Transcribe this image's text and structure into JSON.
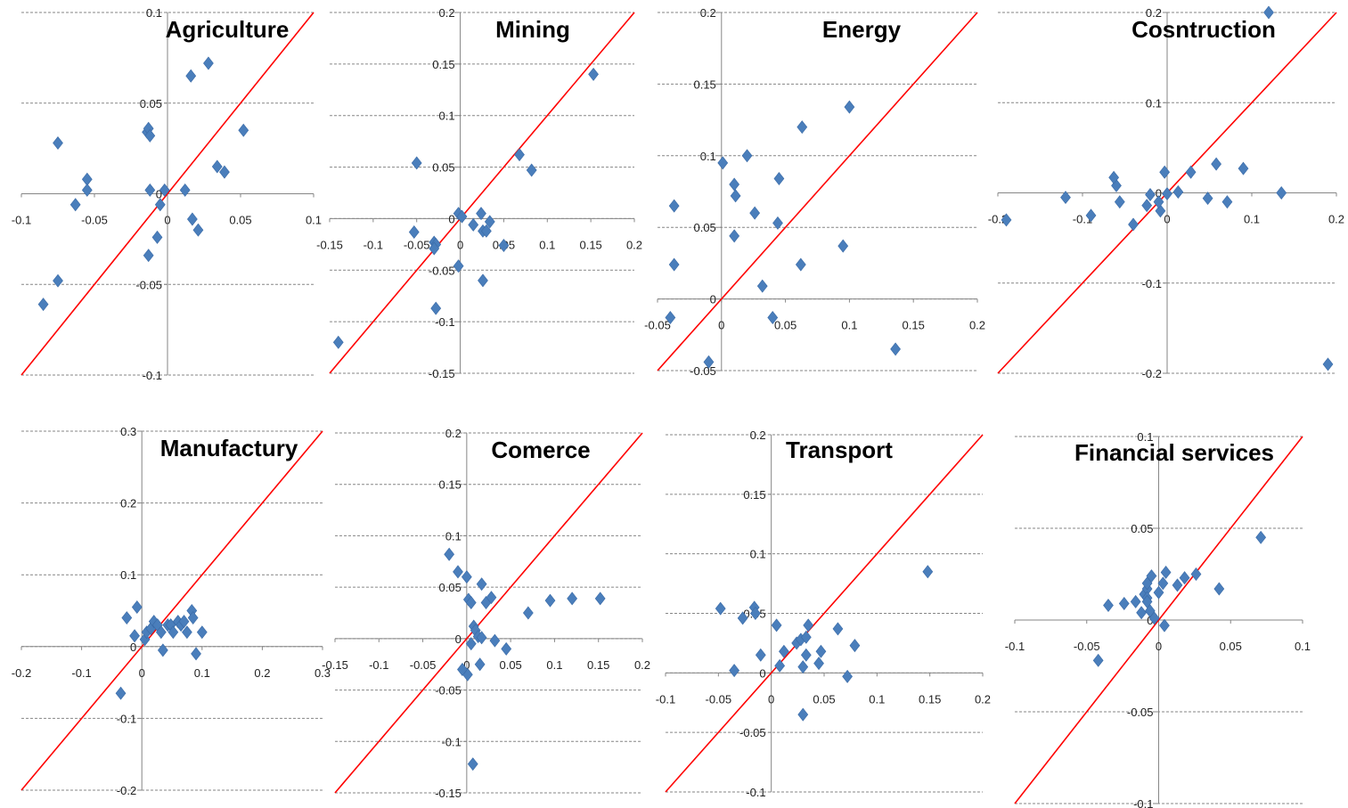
{
  "colors": {
    "points": "#4a7ebb",
    "diagonal": "#ff0000",
    "gridline": "#868686",
    "axis": "#868686"
  },
  "chart_data": [
    {
      "type": "scatter",
      "title": "Agriculture",
      "grid": "horizontal-dashed",
      "reference_line": "y=x",
      "xlim": [
        -0.1,
        0.1
      ],
      "ylim": [
        -0.1,
        0.1
      ],
      "xticks": [
        -0.1,
        -0.05,
        0,
        0.05,
        0.1
      ],
      "yticks": [
        -0.1,
        -0.05,
        0,
        0.05,
        0.1
      ],
      "xtick_labels": [
        "-0.1",
        "-0.05",
        "0",
        "0.05",
        "0.1"
      ],
      "ytick_labels": [
        "-0.1",
        "-0.05",
        "0",
        "0.05",
        "0.1"
      ],
      "x": [
        -0.075,
        -0.055,
        -0.055,
        -0.063,
        -0.075,
        -0.085,
        -0.014,
        -0.013,
        -0.012,
        -0.013,
        -0.005,
        -0.002,
        -0.007,
        -0.012,
        0.012,
        0.016,
        0.017,
        0.028,
        0.034,
        0.039,
        0.021,
        0.052
      ],
      "y": [
        0.028,
        0.008,
        0.002,
        -0.006,
        -0.048,
        -0.061,
        0.034,
        0.036,
        0.002,
        -0.034,
        -0.006,
        0.002,
        -0.024,
        0.032,
        0.002,
        0.065,
        -0.014,
        0.072,
        0.015,
        0.012,
        -0.02,
        0.035
      ]
    },
    {
      "type": "scatter",
      "title": "Mining",
      "grid": "horizontal-dashed",
      "reference_line": "y=x",
      "xlim": [
        -0.15,
        0.2
      ],
      "ylim": [
        -0.15,
        0.2
      ],
      "xticks": [
        -0.15,
        -0.1,
        -0.05,
        0,
        0.05,
        0.1,
        0.15,
        0.2
      ],
      "yticks": [
        -0.15,
        -0.1,
        -0.05,
        0,
        0.05,
        0.1,
        0.15,
        0.2
      ],
      "xtick_labels": [
        "-0.15",
        "-0.1",
        "-0.05",
        "0",
        "0.05",
        "0.1",
        "0.15",
        "0.2"
      ],
      "ytick_labels": [
        "-0.15",
        "-0.1",
        "-0.05",
        "0",
        "0.05",
        "0.1",
        "0.15",
        "0.2"
      ],
      "x": [
        -0.14,
        -0.05,
        -0.053,
        -0.03,
        -0.028,
        -0.028,
        -0.03,
        -0.002,
        0.002,
        -0.002,
        0.015,
        0.024,
        0.026,
        0.03,
        0.034,
        0.05,
        0.026,
        0.068,
        0.082,
        0.153
      ],
      "y": [
        -0.12,
        0.054,
        -0.013,
        -0.023,
        -0.025,
        -0.087,
        -0.029,
        0.005,
        0.002,
        -0.046,
        -0.006,
        0.005,
        -0.012,
        -0.012,
        -0.003,
        -0.026,
        -0.06,
        0.062,
        0.047,
        0.14
      ]
    },
    {
      "type": "scatter",
      "title": "Energy",
      "grid": "horizontal-dashed",
      "reference_line": "y=x",
      "xlim": [
        -0.05,
        0.2
      ],
      "ylim": [
        -0.05,
        0.2
      ],
      "xticks": [
        -0.05,
        0,
        0.05,
        0.1,
        0.15,
        0.2
      ],
      "yticks": [
        -0.05,
        0,
        0.05,
        0.1,
        0.15,
        0.2
      ],
      "xtick_labels": [
        "-0.05",
        "0",
        "0.05",
        "0.1",
        "0.15",
        "0.2"
      ],
      "ytick_labels": [
        "-0.05",
        "0",
        "0.05",
        "0.1",
        "0.15",
        "0.2"
      ],
      "x": [
        -0.04,
        -0.037,
        -0.037,
        -0.01,
        0.001,
        0.01,
        0.011,
        0.01,
        0.02,
        0.026,
        0.032,
        0.04,
        0.045,
        0.044,
        0.062,
        0.063,
        0.095,
        0.1,
        0.136
      ],
      "y": [
        -0.013,
        0.065,
        0.024,
        -0.044,
        0.095,
        0.08,
        0.072,
        0.044,
        0.1,
        0.06,
        0.009,
        -0.013,
        0.084,
        0.053,
        0.024,
        0.12,
        0.037,
        0.134,
        -0.035
      ]
    },
    {
      "type": "scatter",
      "title": "Cosntruction",
      "grid": "horizontal-dashed",
      "reference_line": "y=x",
      "xlim": [
        -0.2,
        0.2
      ],
      "ylim": [
        -0.2,
        0.2
      ],
      "xticks": [
        -0.2,
        -0.1,
        0,
        0.1,
        0.2
      ],
      "yticks": [
        -0.2,
        -0.1,
        0,
        0.1,
        0.2
      ],
      "xtick_labels": [
        "-0.2",
        "-0.1",
        "0",
        "0.1",
        "0.2"
      ],
      "ytick_labels": [
        "-0.2",
        "-0.1",
        "0",
        "0.1",
        "0.2"
      ],
      "x": [
        -0.19,
        -0.12,
        -0.09,
        -0.06,
        -0.063,
        -0.056,
        -0.04,
        -0.024,
        -0.02,
        -0.008,
        -0.003,
        -0.01,
        0,
        0.013,
        0.028,
        0.048,
        0.058,
        0.071,
        0.09,
        0.12,
        0.135,
        0.19
      ],
      "y": [
        -0.03,
        -0.005,
        -0.025,
        0.008,
        0.017,
        -0.01,
        -0.035,
        -0.014,
        -0.002,
        -0.02,
        0.023,
        -0.01,
        -0.001,
        0.001,
        0.023,
        -0.006,
        0.032,
        -0.01,
        0.027,
        0.2,
        0,
        -0.19
      ]
    },
    {
      "type": "scatter",
      "title": "Manufactury",
      "grid": "horizontal-dashed",
      "reference_line": "y=x",
      "xlim": [
        -0.2,
        0.3
      ],
      "ylim": [
        -0.2,
        0.3
      ],
      "xticks": [
        -0.2,
        -0.1,
        0,
        0.1,
        0.2,
        0.3
      ],
      "yticks": [
        -0.2,
        -0.1,
        0,
        0.1,
        0.2,
        0.3
      ],
      "xtick_labels": [
        "-0.2",
        "-0.1",
        "0",
        "0.1",
        "0.2",
        "0.3"
      ],
      "ytick_labels": [
        "-0.2",
        "-0.1",
        "0",
        "0.1",
        "0.2",
        "0.3"
      ],
      "x": [
        -0.035,
        -0.025,
        -0.012,
        -0.008,
        0.005,
        0.008,
        0.015,
        0.02,
        0.026,
        0.032,
        0.035,
        0.043,
        0.048,
        0.052,
        0.06,
        0.065,
        0.07,
        0.075,
        0.083,
        0.085,
        0.09,
        0.1
      ],
      "y": [
        -0.065,
        0.04,
        0.015,
        0.055,
        0.01,
        0.02,
        0.025,
        0.035,
        0.03,
        0.02,
        -0.005,
        0.03,
        0.03,
        0.02,
        0.035,
        0.03,
        0.035,
        0.02,
        0.05,
        0.04,
        -0.01,
        0.02
      ]
    },
    {
      "type": "scatter",
      "title": "Comerce",
      "grid": "horizontal-dashed",
      "reference_line": "y=x",
      "xlim": [
        -0.15,
        0.2
      ],
      "ylim": [
        -0.15,
        0.2
      ],
      "xticks": [
        -0.15,
        -0.1,
        -0.05,
        0,
        0.05,
        0.1,
        0.15,
        0.2
      ],
      "yticks": [
        -0.15,
        -0.1,
        -0.05,
        0,
        0.05,
        0.1,
        0.15,
        0.2
      ],
      "xtick_labels": [
        "-0.15",
        "-0.1",
        "-0.05",
        "0",
        "0.05",
        "0.1",
        "0.15",
        "0.2"
      ],
      "ytick_labels": [
        "-0.15",
        "-0.1",
        "-0.05",
        "0",
        "0.05",
        "0.1",
        "0.15",
        "0.2"
      ],
      "x": [
        -0.02,
        -0.01,
        0,
        0.002,
        0.005,
        0.008,
        0.01,
        0.013,
        0.017,
        0.022,
        0.028,
        0.032,
        0.005,
        0.001,
        0.015,
        -0.005,
        0.017,
        0.045,
        0.07,
        0.095,
        0.12,
        0.152,
        0.007
      ],
      "y": [
        0.082,
        0.065,
        0.06,
        0.038,
        0.035,
        0.012,
        0.008,
        0.002,
        0.053,
        0.035,
        0.04,
        -0.002,
        -0.005,
        -0.035,
        -0.025,
        -0.03,
        0.001,
        -0.01,
        0.025,
        0.037,
        0.039,
        0.039,
        -0.122
      ]
    },
    {
      "type": "scatter",
      "title": "Transport",
      "grid": "horizontal-dashed",
      "reference_line": "y=x",
      "xlim": [
        -0.1,
        0.2
      ],
      "ylim": [
        -0.1,
        0.2
      ],
      "xticks": [
        -0.1,
        -0.05,
        0,
        0.05,
        0.1,
        0.15,
        0.2
      ],
      "yticks": [
        -0.1,
        -0.05,
        0,
        0.05,
        0.1,
        0.15,
        0.2
      ],
      "xtick_labels": [
        "-0.1",
        "-0.05",
        "0",
        "0.05",
        "0.1",
        "0.15",
        "0.2"
      ],
      "ytick_labels": [
        "-0.1",
        "-0.05",
        "0",
        "0.05",
        "0.1",
        "0.15",
        "0.2"
      ],
      "x": [
        -0.048,
        -0.035,
        -0.027,
        -0.016,
        -0.015,
        -0.01,
        0.005,
        0.008,
        0.012,
        0.024,
        0.028,
        0.03,
        0.033,
        0.035,
        0.045,
        0.047,
        0.063,
        0.072,
        0.079,
        0.148,
        0.03,
        0.033
      ],
      "y": [
        0.054,
        0.002,
        0.046,
        0.055,
        0.05,
        0.015,
        0.04,
        0.006,
        0.018,
        0.025,
        0.028,
        0.005,
        0.015,
        0.04,
        0.008,
        0.018,
        0.037,
        -0.003,
        0.023,
        0.085,
        -0.035,
        0.03
      ]
    },
    {
      "type": "scatter",
      "title": "Financial services",
      "grid": "horizontal-dashed",
      "reference_line": "y=x",
      "xlim": [
        -0.1,
        0.1
      ],
      "ylim": [
        -0.1,
        0.1
      ],
      "xticks": [
        -0.1,
        -0.05,
        0,
        0.05,
        0.1
      ],
      "yticks": [
        -0.1,
        -0.05,
        0,
        0.05,
        0.1
      ],
      "xtick_labels": [
        "-0.1",
        "-0.05",
        "0",
        "0.05",
        "0.1"
      ],
      "ytick_labels": [
        "-0.1",
        "-0.05",
        "0",
        "0.05",
        "0.1"
      ],
      "x": [
        -0.042,
        -0.035,
        -0.024,
        -0.016,
        -0.012,
        -0.01,
        -0.008,
        -0.008,
        -0.008,
        -0.008,
        -0.005,
        -0.006,
        -0.003,
        0,
        0.003,
        0.005,
        0.013,
        0.018,
        0.026,
        0.042,
        0.071,
        0.004
      ],
      "y": [
        -0.022,
        0.008,
        0.009,
        0.01,
        0.004,
        0.014,
        0.017,
        0.02,
        0.012,
        0.01,
        0.024,
        0.005,
        0.001,
        0.015,
        0.02,
        0.026,
        0.019,
        0.023,
        0.025,
        0.017,
        0.045,
        -0.003
      ]
    }
  ]
}
